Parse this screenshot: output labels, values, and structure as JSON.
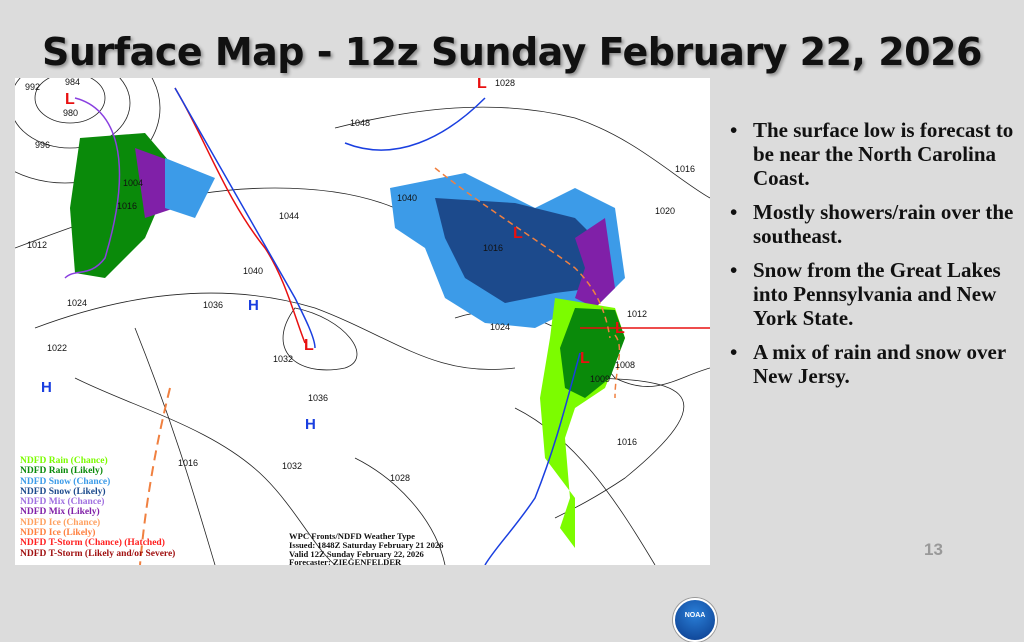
{
  "slide": {
    "title": "Surface Map - 12z Sunday February 22, 2026",
    "page_number": "13",
    "bullets": [
      "The surface low is forecast to be near the North Carolina Coast.",
      "Mostly showers/rain over the southeast.",
      "Snow from the Great Lakes into Pennsylvania and New York State.",
      "A mix of rain and snow over New Jersy."
    ]
  },
  "map": {
    "legend": [
      {
        "label": "NDFD Rain (Chance)",
        "color": "#7cfc00"
      },
      {
        "label": "NDFD Rain (Likely)",
        "color": "#0a8a0a"
      },
      {
        "label": "NDFD Snow (Chance)",
        "color": "#3c9be8"
      },
      {
        "label": "NDFD Snow (Likely)",
        "color": "#1c4a8c"
      },
      {
        "label": "NDFD Mix (Chance)",
        "color": "#a070e0"
      },
      {
        "label": "NDFD Mix (Likely)",
        "color": "#8020a8"
      },
      {
        "label": "NDFD Ice (Chance)",
        "color": "#ffa060"
      },
      {
        "label": "NDFD Ice (Likely)",
        "color": "#ff8040"
      },
      {
        "label": "NDFD T-Storm (Chance) (Hatched)",
        "color": "#ff2020"
      },
      {
        "label": "NDFD T-Storm (Likely and/or Severe)",
        "color": "#a01010"
      }
    ],
    "info": [
      "WPC Fronts/NDFD Weather Type",
      "Issued: 1848Z Saturday February 21 2026",
      "Valid 12Z Sunday February 22, 2026",
      "Forecaster: ZIEGENFELDER"
    ],
    "isobar_labels": [
      "992",
      "984",
      "980",
      "996",
      "1004",
      "1016",
      "1012",
      "1024",
      "1022",
      "1036",
      "1040",
      "1044",
      "1048",
      "1040",
      "1028",
      "1016",
      "1020",
      "1016",
      "1024",
      "1012",
      "1008",
      "1009",
      "1016",
      "1036",
      "1032",
      "1032",
      "1028",
      "1016"
    ],
    "high_label": "H",
    "low_label": "L",
    "logo_text": "NOAA"
  }
}
